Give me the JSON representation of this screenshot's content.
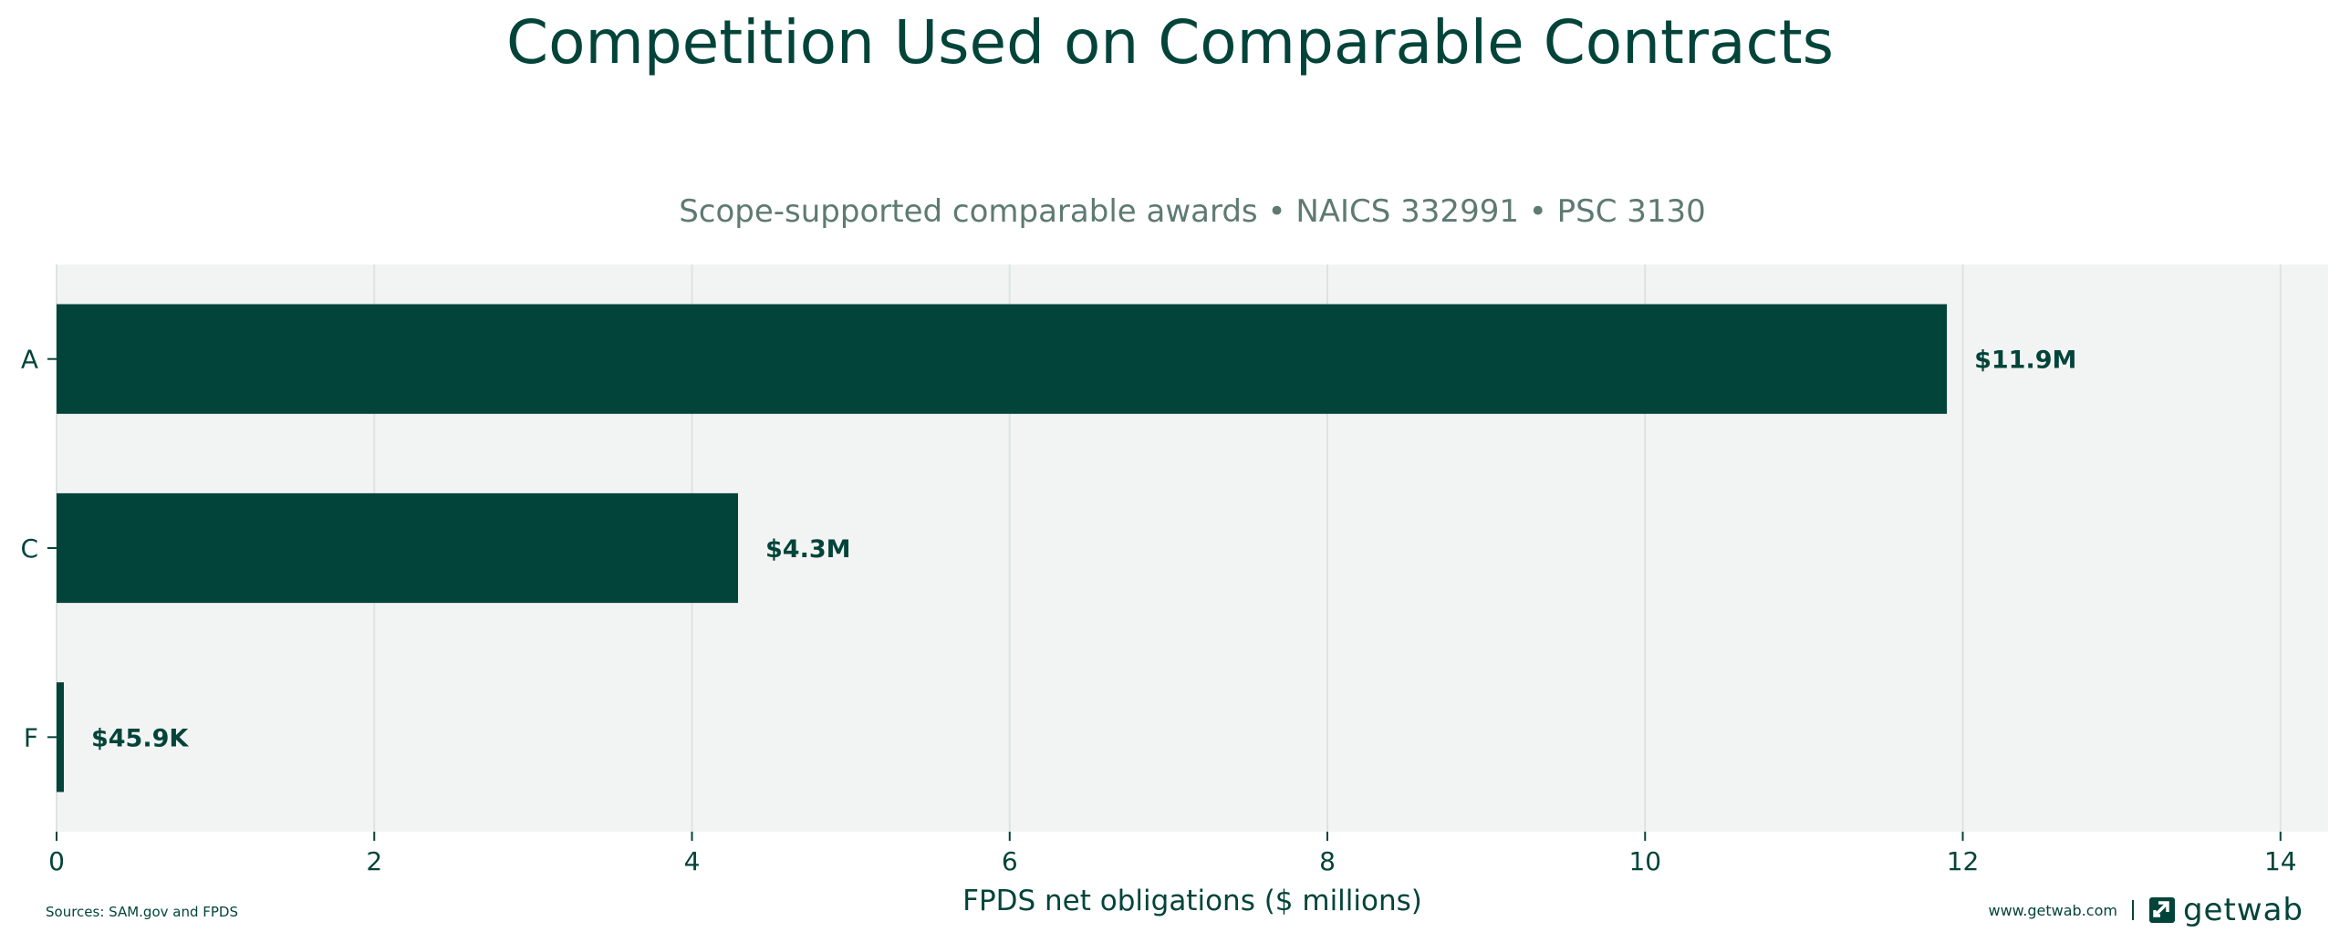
{
  "title": "Competition Used on Comparable Contracts",
  "subtitle": "Scope-supported comparable awards • NAICS 332991 • PSC 3130",
  "source": "Sources: SAM.gov and FPDS",
  "brand": {
    "url": "www.getwab.com",
    "separator": "|",
    "name": "getwab",
    "logo_icon": "getwab-logo-icon"
  },
  "colors": {
    "bar": "#03443a",
    "plot_bg": "#f2f4f3",
    "grid": "#dde3e0",
    "text": "#03443a",
    "subtitle": "#5e7a72"
  },
  "chart_data": {
    "type": "bar",
    "orientation": "horizontal",
    "categories": [
      "A",
      "C",
      "F"
    ],
    "values": [
      11.9,
      4.29,
      0.0459
    ],
    "data_labels": [
      "$11.9M",
      "$4.3M",
      "$45.9K"
    ],
    "xlabel": "FPDS net obligations ($ millions)",
    "ylabel": "",
    "xlim": [
      0,
      14.3
    ],
    "xticks": [
      0,
      2,
      4,
      6,
      8,
      10,
      12,
      14
    ],
    "grid": "vertical",
    "legend": "none"
  }
}
